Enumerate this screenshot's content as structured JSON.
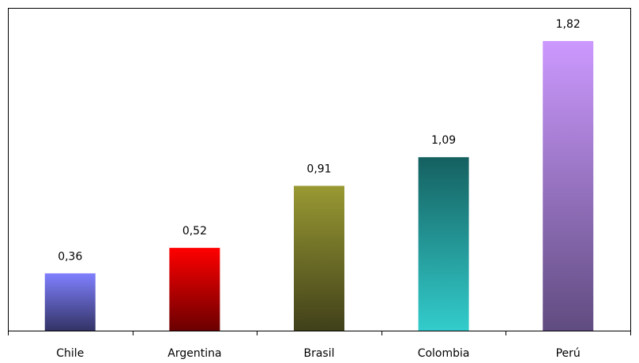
{
  "chart_data": {
    "type": "bar",
    "categories": [
      "Chile",
      "Argentina",
      "Brasil",
      "Colombia",
      "Perú"
    ],
    "values": [
      0.36,
      0.52,
      0.91,
      1.09,
      1.82
    ],
    "value_labels": [
      "0,36",
      "0,52",
      "0,91",
      "1,09",
      "1,82"
    ],
    "title": "",
    "xlabel": "",
    "ylabel": "",
    "ylim": [
      0,
      2
    ],
    "grid": false,
    "legend": "none",
    "bar_gradients": [
      {
        "top": "#8080ff",
        "bottom": "#333366"
      },
      {
        "top": "#ff0000",
        "bottom": "#6b0000"
      },
      {
        "top": "#999933",
        "bottom": "#40401a"
      },
      {
        "top": "#156060",
        "bottom": "#33cccc"
      },
      {
        "top": "#cc99ff",
        "bottom": "#604c80"
      }
    ]
  }
}
